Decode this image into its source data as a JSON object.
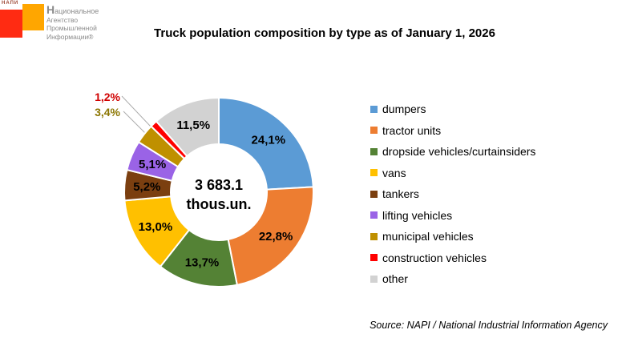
{
  "logo": {
    "brand": "НАПИ",
    "lines": [
      "Национальное",
      "Агентство",
      "Промышленной",
      "Информации®"
    ],
    "colors": {
      "red": "#ff2b12",
      "orange": "#ffa600"
    }
  },
  "chart_data": {
    "type": "pie",
    "subtype": "donut",
    "title": "Truck population composition by type as of January 1, 2026",
    "center_value": "3 683.1",
    "center_unit": "thous.un.",
    "unit": "%",
    "start_angle_deg": 0,
    "direction": "clockwise",
    "legend_position": "right",
    "slices": [
      {
        "name": "dumpers",
        "value": 24.1,
        "label": "24,1%",
        "color": "#5B9BD5",
        "label_placement": "inside"
      },
      {
        "name": "tractor units",
        "value": 22.8,
        "label": "22,8%",
        "color": "#ED7D31",
        "label_placement": "inside"
      },
      {
        "name": "dropside vehicles/curtainsiders",
        "value": 13.7,
        "label": "13,7%",
        "color": "#548235",
        "label_placement": "inside"
      },
      {
        "name": "vans",
        "value": 13.0,
        "label": "13,0%",
        "color": "#FFC000",
        "label_placement": "inside"
      },
      {
        "name": "tankers",
        "value": 5.2,
        "label": "5,2%",
        "color": "#7B3F10",
        "label_placement": "inside"
      },
      {
        "name": "lifting vehicles",
        "value": 5.1,
        "label": "5,1%",
        "color": "#9A63E6",
        "label_placement": "inside"
      },
      {
        "name": "municipal vehicles",
        "value": 3.4,
        "label": "3,4%",
        "color": "#BF9000",
        "label_placement": "callout",
        "label_color": "#8B7500"
      },
      {
        "name": "construction vehicles",
        "value": 1.2,
        "label": "1,2%",
        "color": "#FF0000",
        "label_placement": "callout",
        "label_color": "#D00000"
      },
      {
        "name": "other",
        "value": 11.5,
        "label": "11,5%",
        "color": "#D2D2D2",
        "label_placement": "inside"
      }
    ]
  },
  "source": "Source: NAPI / National Industrial Information Agency"
}
